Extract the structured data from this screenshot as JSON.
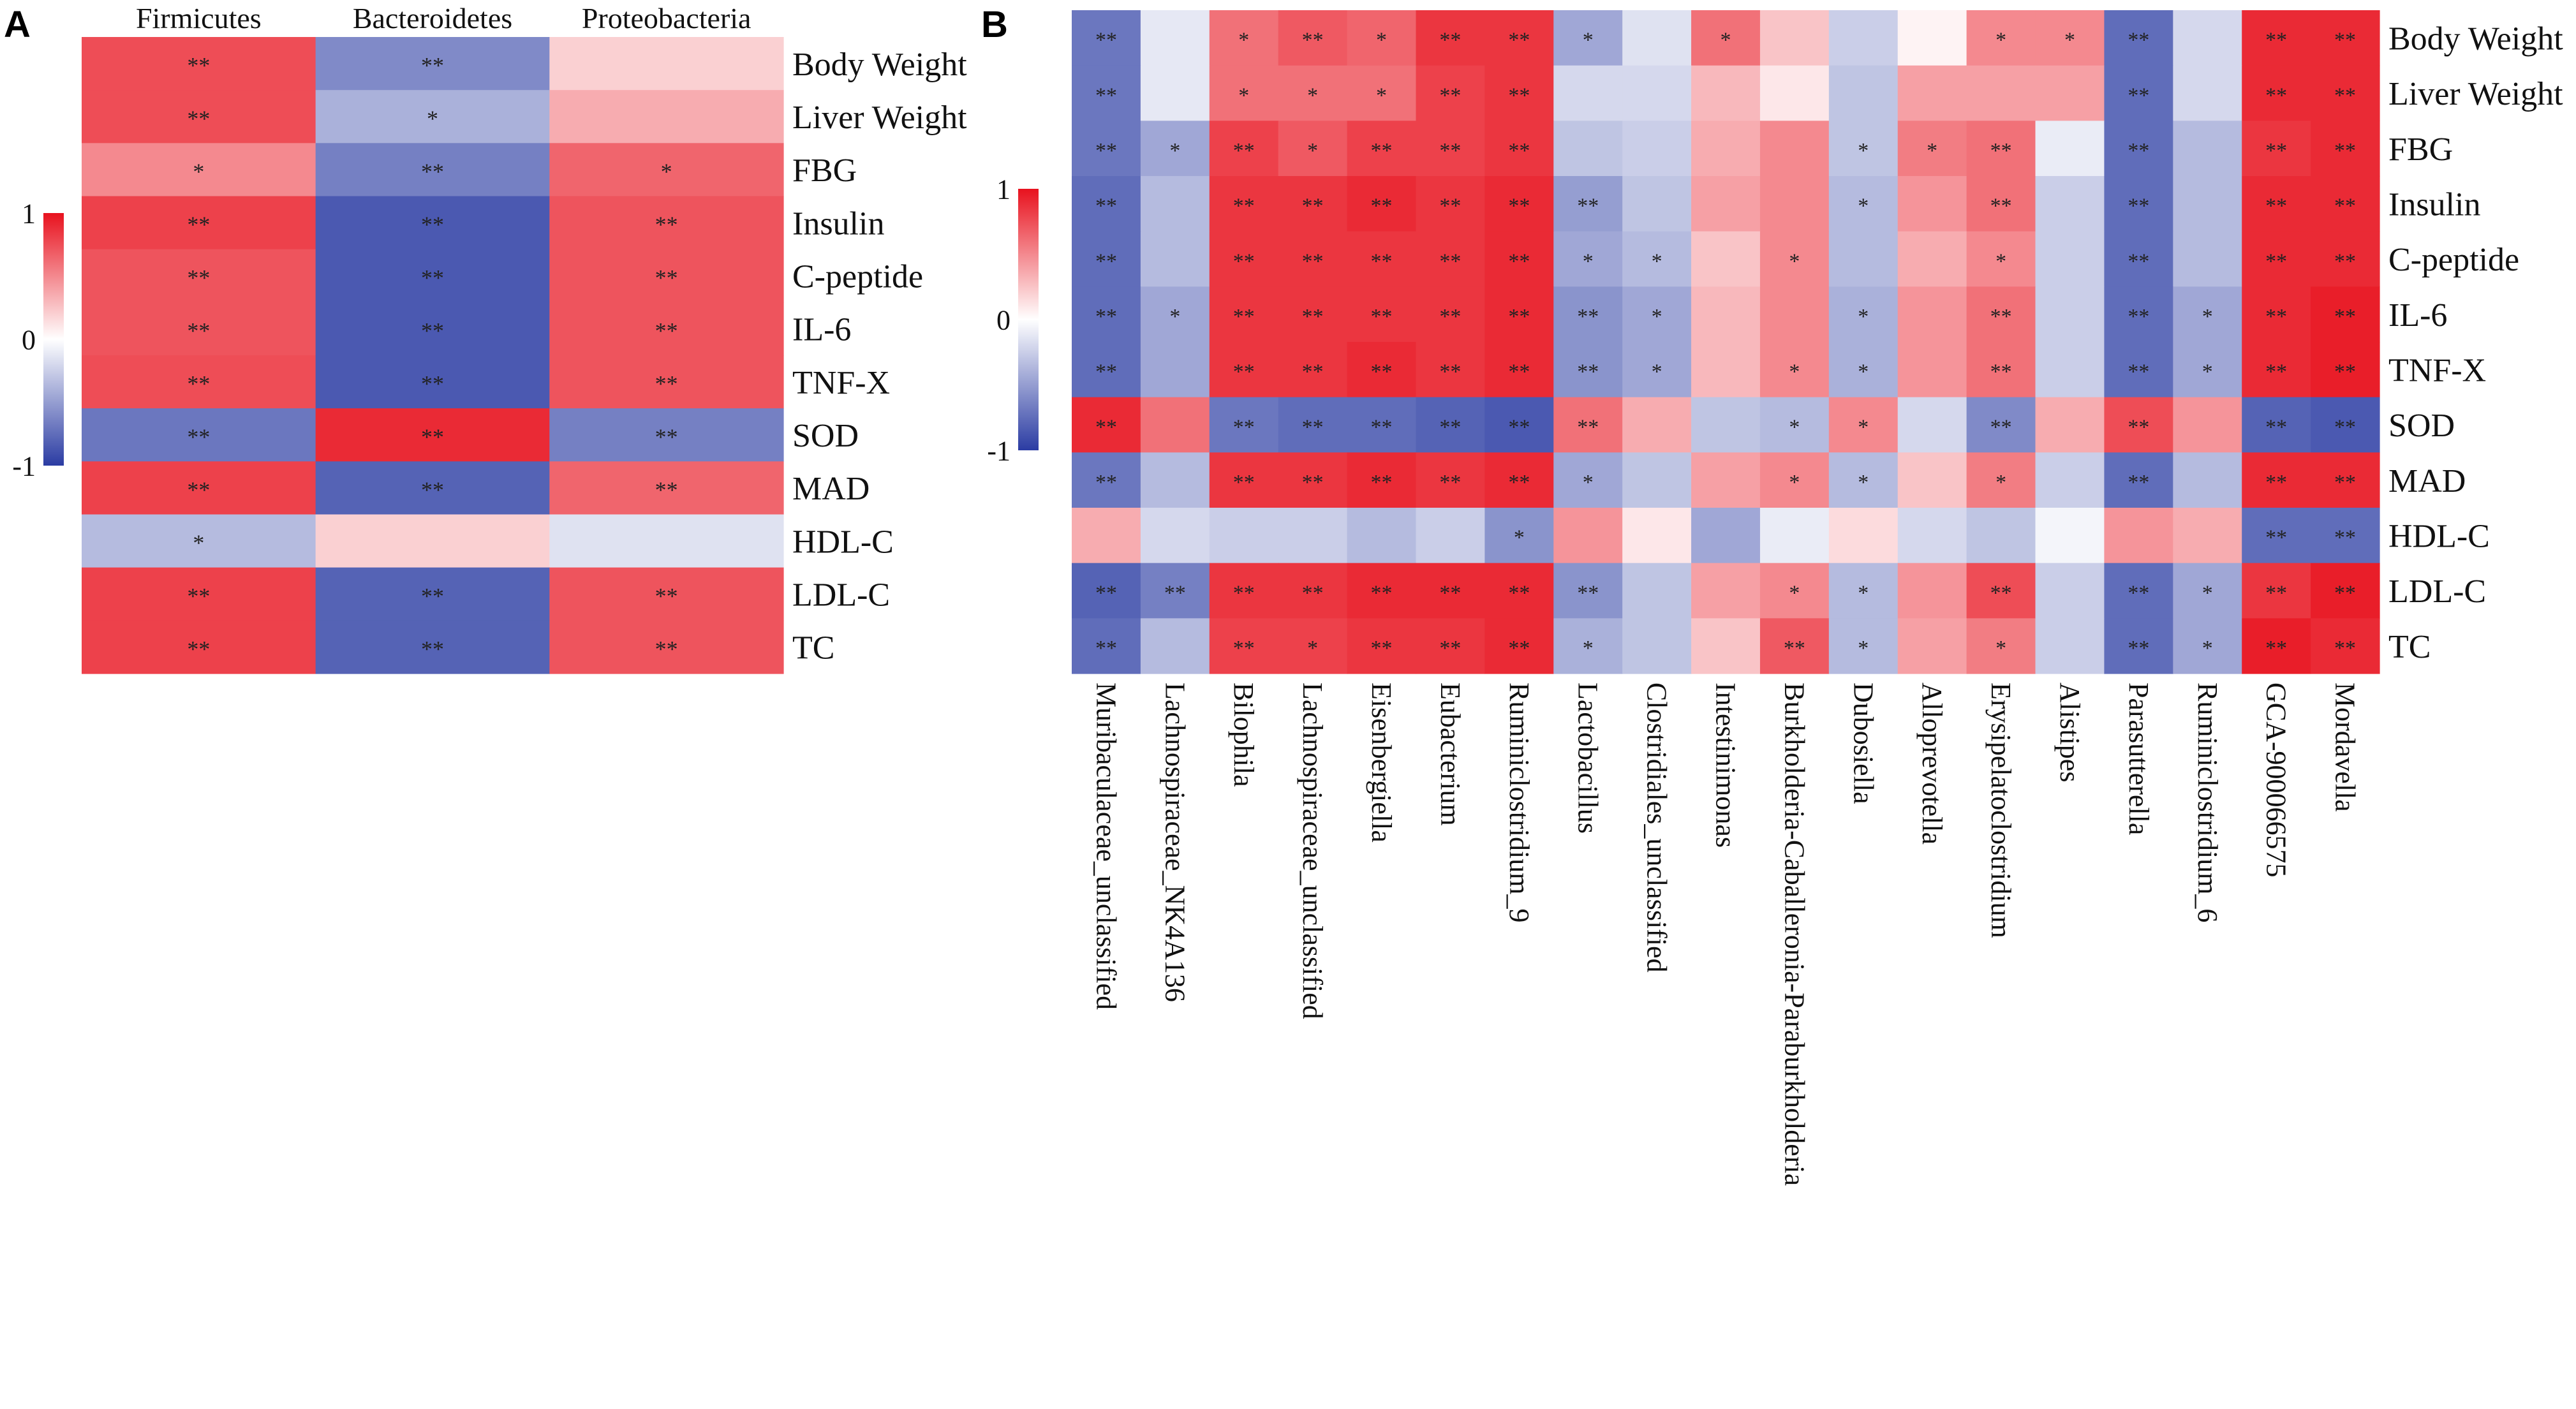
{
  "legend_colors": {
    "negative": "#2b3ca3",
    "neutral": "#ffffff",
    "positive": "#e8121e"
  },
  "chart_data": [
    {
      "panel": "A",
      "type": "heatmap",
      "title": "",
      "colorscale": {
        "min": -1,
        "max": 1,
        "ticks": [
          "1",
          "0",
          "-1"
        ]
      },
      "columns": [
        "Firmicutes",
        "Bacteroidetes",
        "Proteobacteria"
      ],
      "rows": [
        "Body Weight",
        "Liver Weight",
        "FBG",
        "Insulin",
        "C-peptide",
        "IL-6",
        "TNF-X",
        "SOD",
        "MAD",
        "HDL-C",
        "LDL-C",
        "TC"
      ],
      "values": [
        [
          0.75,
          -0.6,
          0.2
        ],
        [
          0.75,
          -0.4,
          0.35
        ],
        [
          0.5,
          -0.65,
          0.65
        ],
        [
          0.8,
          -0.85,
          0.72
        ],
        [
          0.72,
          -0.85,
          0.72
        ],
        [
          0.72,
          -0.85,
          0.72
        ],
        [
          0.75,
          -0.85,
          0.72
        ],
        [
          -0.7,
          0.9,
          -0.65
        ],
        [
          0.8,
          -0.8,
          0.65
        ],
        [
          -0.35,
          0.2,
          -0.15
        ],
        [
          0.8,
          -0.8,
          0.72
        ],
        [
          0.8,
          -0.8,
          0.72
        ]
      ],
      "stars": [
        [
          "**",
          "**",
          ""
        ],
        [
          "**",
          "*",
          ""
        ],
        [
          "*",
          "**",
          "*"
        ],
        [
          "**",
          "**",
          "**"
        ],
        [
          "**",
          "**",
          "**"
        ],
        [
          "**",
          "**",
          "**"
        ],
        [
          "**",
          "**",
          "**"
        ],
        [
          "**",
          "**",
          "**"
        ],
        [
          "**",
          "**",
          "**"
        ],
        [
          "*",
          "",
          ""
        ],
        [
          "**",
          "**",
          "**"
        ],
        [
          "**",
          "**",
          "**"
        ]
      ]
    },
    {
      "panel": "B",
      "type": "heatmap",
      "title": "",
      "colorscale": {
        "min": -1,
        "max": 1,
        "ticks": [
          "1",
          "0",
          "-1"
        ]
      },
      "columns": [
        "Muribaculaceae_unclassified",
        "Lachnospiraceae_NK4A136",
        "Bilophila",
        "Lachnospiraceae_unclassified",
        "Eisenbergiella",
        "Eubacterium",
        "Ruminiclostridium_9",
        "Lactobacillus",
        "Clostridiales_unclassified",
        "Intestinimonas",
        "Burkholderia-Caballeronia-Paraburkholderia",
        "Dubosiella",
        "Alloprevotella",
        "Erysipelatoclostridium",
        "Alistipes",
        "Parasutterella",
        "Ruminiclostridium_6",
        "GCA-900066575",
        "Mordavella"
      ],
      "rows": [
        "Body Weight",
        "Liver Weight",
        "FBG",
        "Insulin",
        "C-peptide",
        "IL-6",
        "TNF-X",
        "SOD",
        "MAD",
        "HDL-C",
        "LDL-C",
        "TC"
      ],
      "values": [
        [
          -0.7,
          -0.12,
          0.6,
          0.7,
          0.65,
          0.85,
          0.85,
          -0.45,
          -0.15,
          0.6,
          0.25,
          -0.25,
          0.05,
          0.5,
          0.5,
          -0.75,
          -0.2,
          0.9,
          0.9
        ],
        [
          -0.7,
          -0.12,
          0.6,
          0.6,
          0.6,
          0.8,
          0.85,
          -0.2,
          -0.2,
          0.3,
          0.1,
          -0.3,
          0.4,
          0.4,
          0.4,
          -0.75,
          -0.2,
          0.9,
          0.9
        ],
        [
          -0.7,
          -0.45,
          0.8,
          0.7,
          0.8,
          0.8,
          0.85,
          -0.3,
          -0.25,
          0.35,
          0.5,
          -0.3,
          0.55,
          0.6,
          -0.1,
          -0.75,
          -0.35,
          0.85,
          0.9
        ],
        [
          -0.75,
          -0.35,
          0.85,
          0.85,
          0.9,
          0.85,
          0.9,
          -0.5,
          -0.3,
          0.4,
          0.5,
          -0.35,
          0.45,
          0.6,
          -0.25,
          -0.75,
          -0.35,
          0.9,
          0.9
        ],
        [
          -0.75,
          -0.35,
          0.85,
          0.85,
          0.85,
          0.85,
          0.9,
          -0.45,
          -0.35,
          0.25,
          0.5,
          -0.35,
          0.35,
          0.5,
          -0.25,
          -0.75,
          -0.35,
          0.9,
          0.9
        ],
        [
          -0.75,
          -0.45,
          0.85,
          0.85,
          0.85,
          0.85,
          0.9,
          -0.55,
          -0.45,
          0.3,
          0.5,
          -0.4,
          0.45,
          0.6,
          -0.25,
          -0.75,
          -0.45,
          0.9,
          0.95
        ],
        [
          -0.75,
          -0.45,
          0.85,
          0.85,
          0.9,
          0.85,
          0.9,
          -0.55,
          -0.45,
          0.3,
          0.5,
          -0.4,
          0.45,
          0.6,
          -0.25,
          -0.75,
          -0.45,
          0.9,
          0.95
        ],
        [
          0.9,
          0.6,
          -0.7,
          -0.75,
          -0.75,
          -0.8,
          -0.85,
          0.6,
          0.35,
          -0.3,
          -0.35,
          0.5,
          -0.2,
          -0.6,
          0.35,
          0.75,
          0.45,
          -0.8,
          -0.85
        ],
        [
          -0.7,
          -0.35,
          0.85,
          0.85,
          0.9,
          0.85,
          0.9,
          -0.45,
          -0.3,
          0.4,
          0.5,
          -0.35,
          0.25,
          0.55,
          -0.25,
          -0.75,
          -0.35,
          0.9,
          0.9
        ],
        [
          0.35,
          -0.2,
          -0.25,
          -0.25,
          -0.35,
          -0.25,
          -0.55,
          0.45,
          0.1,
          -0.45,
          -0.1,
          0.15,
          -0.2,
          -0.3,
          -0.05,
          0.45,
          0.35,
          -0.75,
          -0.75
        ],
        [
          -0.8,
          -0.65,
          0.85,
          0.85,
          0.9,
          0.9,
          0.9,
          -0.55,
          -0.3,
          0.4,
          0.5,
          -0.35,
          0.45,
          0.75,
          -0.25,
          -0.75,
          -0.45,
          0.85,
          0.95
        ],
        [
          -0.75,
          -0.35,
          0.8,
          0.8,
          0.85,
          0.85,
          0.9,
          -0.4,
          -0.3,
          0.25,
          0.7,
          -0.35,
          0.4,
          0.55,
          -0.25,
          -0.75,
          -0.45,
          0.95,
          0.9
        ]
      ],
      "stars": [
        [
          "**",
          "",
          "*",
          "**",
          "*",
          "**",
          "**",
          "*",
          "",
          "*",
          "",
          "",
          "",
          "*",
          "*",
          "**",
          "",
          "**",
          "**"
        ],
        [
          "**",
          "",
          "*",
          "*",
          "*",
          "**",
          "**",
          "",
          "",
          "",
          "",
          "",
          "",
          "",
          "",
          "**",
          "",
          "**",
          "**"
        ],
        [
          "**",
          "*",
          "**",
          "*",
          "**",
          "**",
          "**",
          "",
          "",
          "",
          "",
          "*",
          "*",
          "**",
          "",
          "**",
          "",
          "**",
          "**"
        ],
        [
          "**",
          "",
          "**",
          "**",
          "**",
          "**",
          "**",
          "**",
          "",
          "",
          "",
          "*",
          "",
          "**",
          "",
          "**",
          "",
          "**",
          "**"
        ],
        [
          "**",
          "",
          "**",
          "**",
          "**",
          "**",
          "**",
          "*",
          "*",
          "",
          "*",
          "",
          "",
          "*",
          "",
          "**",
          "",
          "**",
          "**"
        ],
        [
          "**",
          "*",
          "**",
          "**",
          "**",
          "**",
          "**",
          "**",
          "*",
          "",
          "",
          "*",
          "",
          "**",
          "",
          "**",
          "*",
          "**",
          "**"
        ],
        [
          "**",
          "",
          "**",
          "**",
          "**",
          "**",
          "**",
          "**",
          "*",
          "",
          "*",
          "*",
          "",
          "**",
          "",
          "**",
          "*",
          "**",
          "**"
        ],
        [
          "**",
          "",
          "**",
          "**",
          "**",
          "**",
          "**",
          "**",
          "",
          "",
          "*",
          "*",
          "",
          "**",
          "",
          "**",
          "",
          "**",
          "**"
        ],
        [
          "**",
          "",
          "**",
          "**",
          "**",
          "**",
          "**",
          "*",
          "",
          "",
          "*",
          "*",
          "",
          "*",
          "",
          "**",
          "",
          "**",
          "**"
        ],
        [
          "",
          "",
          "",
          "",
          "",
          "",
          "*",
          "",
          "",
          "",
          "",
          "",
          "",
          "",
          "",
          "",
          "",
          "**",
          "**"
        ],
        [
          "**",
          "**",
          "**",
          "**",
          "**",
          "**",
          "**",
          "**",
          "",
          "",
          "*",
          "*",
          "",
          "**",
          "",
          "**",
          "*",
          "**",
          "**"
        ],
        [
          "**",
          "",
          "**",
          "*",
          "**",
          "**",
          "**",
          "*",
          "",
          "",
          "**",
          "*",
          "",
          "*",
          "",
          "**",
          "*",
          "**",
          "**"
        ]
      ]
    }
  ]
}
